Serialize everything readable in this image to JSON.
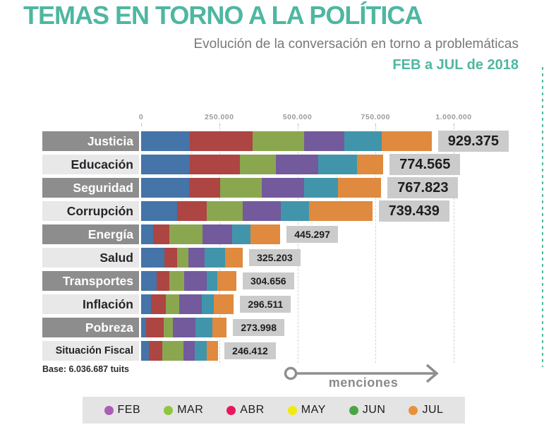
{
  "chart_data": {
    "type": "bar",
    "stacked": true,
    "orientation": "horizontal",
    "title": "TEMAS EN TORNO A LA POLÍTICA",
    "subtitle": "Evolución de la conversación en torno a problemáticas",
    "period": "FEB a JUL de 2018",
    "xlabel": "menciones",
    "base_note": "Base: 6.036.687 tuits",
    "axis": {
      "max": 1000000,
      "grid": "dashed-vertical",
      "ticks": [
        {
          "value": 0,
          "label": "0"
        },
        {
          "value": 250000,
          "label": "250.000"
        },
        {
          "value": 500000,
          "label": "500.000"
        },
        {
          "value": 750000,
          "label": "750.000"
        },
        {
          "value": 1000000,
          "label": "1.000.000"
        }
      ]
    },
    "series": [
      {
        "name": "FEB",
        "bar_color": "#4474a8",
        "legend_color": "#a85fb4"
      },
      {
        "name": "MAR",
        "bar_color": "#ad4543",
        "legend_color": "#8dc63f"
      },
      {
        "name": "ABR",
        "bar_color": "#8aa750",
        "legend_color": "#e8175d"
      },
      {
        "name": "MAY",
        "bar_color": "#725a9d",
        "legend_color": "#f2ea0d"
      },
      {
        "name": "JUN",
        "bar_color": "#4195ab",
        "legend_color": "#4ba546"
      },
      {
        "name": "JUL",
        "bar_color": "#df8a3e",
        "legend_color": "#e8913c"
      }
    ],
    "rows": [
      {
        "label": "Justicia",
        "total_label": "929.375",
        "values": [
          156400,
          199500,
          165500,
          129200,
          120100,
          158675
        ]
      },
      {
        "label": "Educación",
        "total_label": "774.565",
        "values": [
          156300,
          160800,
          113200,
          135900,
          124600,
          83765
        ]
      },
      {
        "label": "Seguridad",
        "total_label": "767.823",
        "values": [
          152700,
          101000,
          132500,
          134700,
          110000,
          136923
        ]
      },
      {
        "label": "Corrupción",
        "total_label": "739.439",
        "values": [
          115000,
          94700,
          115000,
          121700,
          90200,
          202839
        ]
      },
      {
        "label": "Energía",
        "total_label": "445.297",
        "values": [
          38200,
          51700,
          105700,
          96700,
          58500,
          94497
        ]
      },
      {
        "label": "Salud",
        "total_label": "325.203",
        "values": [
          74500,
          40700,
          36100,
          51900,
          65500,
          56503
        ]
      },
      {
        "label": "Transportes",
        "total_label": "304.656",
        "values": [
          49600,
          40600,
          47400,
          72200,
          33900,
          60956
        ]
      },
      {
        "label": "Inflación",
        "total_label": "296.511",
        "values": [
          31700,
          47500,
          43000,
          72400,
          38500,
          63411
        ]
      },
      {
        "label": "Pobreza",
        "total_label": "273.998",
        "values": [
          15900,
          56600,
          29400,
          72500,
          54300,
          45298
        ]
      },
      {
        "label": "Situación Fiscal",
        "total_label": "246.412",
        "values": [
          25100,
          43400,
          66200,
          36500,
          38800,
          36412
        ]
      }
    ],
    "legend_position": "bottom"
  },
  "colors": {
    "accent_teal": "#4eb7a1",
    "subtitle_gray": "#77787c",
    "row_label_dark_bg": "#8d8d8d",
    "row_label_light_bg": "#e8e8e8",
    "value_badge_bg": "#cbcbcb",
    "legend_strip_bg": "#e4e4e4",
    "arrow_gray": "#8f8f8f"
  }
}
